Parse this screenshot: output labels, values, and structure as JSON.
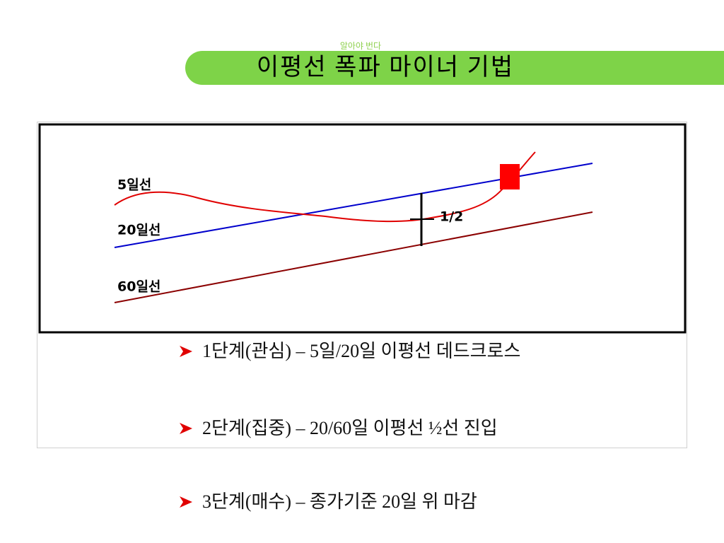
{
  "header": {
    "subtitle": "알아야 번다",
    "title": "이평선 폭파 마이너 기법"
  },
  "diagram": {
    "line_labels": [
      "5일선",
      "20일선",
      "60일선"
    ],
    "half_label": "1/2"
  },
  "bullets": [
    "1단계(관심) – 5일/20일 이평선 데드크로스",
    "2단계(집중) – 20/60일 이평선 ½선 진입",
    "3단계(매수) – 종가기준 20일 위 마감"
  ]
}
